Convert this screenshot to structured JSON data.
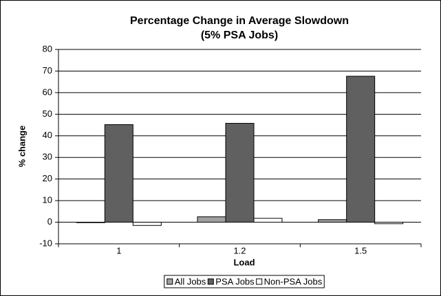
{
  "chart_data": {
    "type": "bar",
    "title": "Percentage Change in Average Slowdown",
    "subtitle": "(5% PSA Jobs)",
    "x_label": "Load",
    "y_label": "% change",
    "categories": [
      "1",
      "1.2",
      "1.5"
    ],
    "series": [
      {
        "name": "All Jobs",
        "color": "#a0a0a0",
        "values": [
          -0.2,
          2.5,
          1.2
        ]
      },
      {
        "name": "PSA Jobs",
        "color": "#606060",
        "values": [
          45.2,
          45.8,
          67.6
        ]
      },
      {
        "name": "Non-PSA Jobs",
        "color": "#ffffff",
        "values": [
          -1.5,
          1.8,
          -0.7
        ]
      }
    ],
    "ylim": [
      -10,
      80
    ],
    "yticks": [
      -10,
      0,
      10,
      20,
      30,
      40,
      50,
      60,
      70,
      80
    ],
    "grid": true,
    "legend": "bottom"
  }
}
